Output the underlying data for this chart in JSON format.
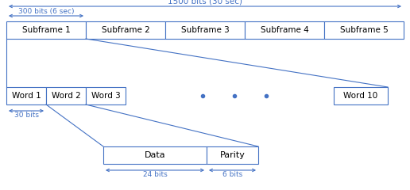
{
  "bg_color": "#ffffff",
  "box_edge_color": "#4472c4",
  "arrow_color": "#4472c4",
  "text_color": "#000000",
  "title_arrow_label": "1500 bits (30 sec)",
  "sub_arrow_label": "300 bits (6 sec)",
  "word_arrow_label": "30 bits",
  "data_arrow_label": "24 bits",
  "parity_arrow_label": "6 bits",
  "subframes": [
    "Subframe 1",
    "Subframe 2",
    "Subframe 3",
    "Subframe 4",
    "Subframe 5"
  ],
  "words": [
    "Word 1",
    "Word 2",
    "Word 3"
  ],
  "word10": "Word 10",
  "data_label": "Data",
  "parity_label": "Parity",
  "fig_width": 5.16,
  "fig_height": 2.4,
  "dpi": 100
}
